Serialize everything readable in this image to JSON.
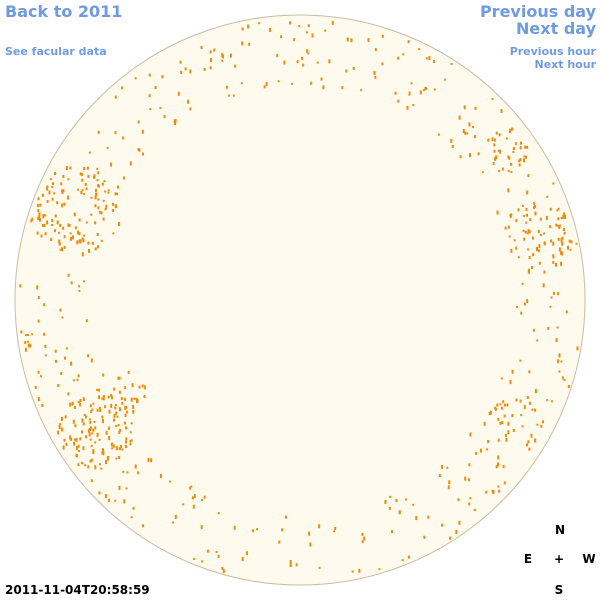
{
  "nav": {
    "back": "Back to 2011",
    "facular": "See facular data",
    "previous_day": "Previous day",
    "next_day": "Next day",
    "previous_hour": "Previous hour",
    "next_hour": "Next hour"
  },
  "timestamp": "2011-11-04T20:58:59",
  "compass": {
    "north": "N",
    "east": "E",
    "center": "+",
    "west": "W",
    "south": "S"
  }
}
